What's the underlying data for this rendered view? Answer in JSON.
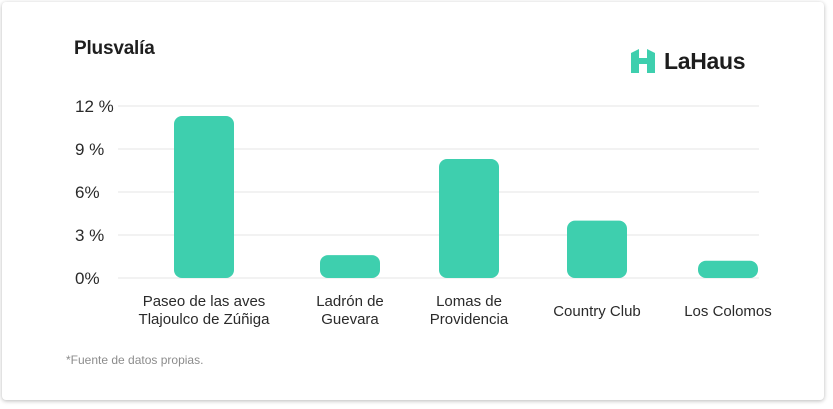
{
  "header": {
    "title": "Plusvalía",
    "brand": "LaHaus",
    "brand_color": "#3ecfae"
  },
  "footnote": "*Fuente de datos propias.",
  "chart_data": {
    "type": "bar",
    "title": "Plusvalía",
    "categories": [
      [
        "Paseo de las aves",
        "Tlajoulco de Zúñiga"
      ],
      [
        "Ladrón de",
        "Guevara"
      ],
      [
        "Lomas de",
        "Providencia"
      ],
      [
        "Country Club"
      ],
      [
        "Los Colomos"
      ]
    ],
    "values": [
      11.3,
      1.6,
      8.3,
      4.0,
      1.2
    ],
    "ylim": [
      0,
      12
    ],
    "yticks": [
      0,
      3,
      6,
      9,
      12
    ],
    "ytick_labels": [
      "0%",
      "3 %",
      "6%",
      "9 %",
      "12 %"
    ],
    "xlabel": "",
    "ylabel": "",
    "grid": true,
    "bar_color": "#3ecfae",
    "grid_color": "#e4e4e4"
  }
}
